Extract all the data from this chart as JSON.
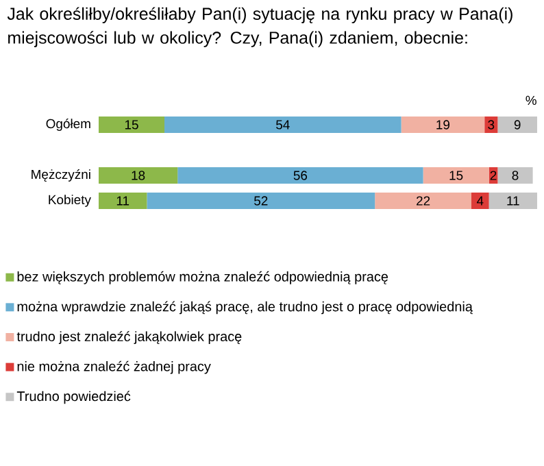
{
  "chart_data": {
    "type": "bar",
    "orientation": "horizontal",
    "stacked": true,
    "data_labels": true,
    "legend": "bottom",
    "tick_labels": "y",
    "title": "Jak określiłby/określiłaby Pan(i) sytuację na rynku pracy w Pana(i) miejscowości lub w okolicy? Czy, Pana(i) zdaniem, obecnie:",
    "annotations": [
      "%"
    ],
    "categories": [
      "Ogółem",
      null,
      "Mężczyźni",
      "Kobiety"
    ],
    "series": [
      {
        "name": "bez większych problemów można znaleźć odpowiednią pracę",
        "color": "#8db84a",
        "values": [
          15,
          null,
          18,
          11
        ]
      },
      {
        "name": "można wprawdzie znaleźć jakąś pracę, ale trudno jest o pracę odpowiednią",
        "color": "#6aafd3",
        "values": [
          54,
          null,
          56,
          52
        ]
      },
      {
        "name": "trudno jest znaleźć jakąkolwiek pracę",
        "color": "#f1b1a2",
        "values": [
          19,
          null,
          15,
          22
        ]
      },
      {
        "name": "nie można znaleźć żadnej pracy",
        "color": "#dc3c38",
        "values": [
          3,
          null,
          2,
          4
        ]
      },
      {
        "name": "Trudno powiedzieć",
        "color": "#c6c6c6",
        "values": [
          9,
          null,
          8,
          11
        ]
      }
    ]
  }
}
